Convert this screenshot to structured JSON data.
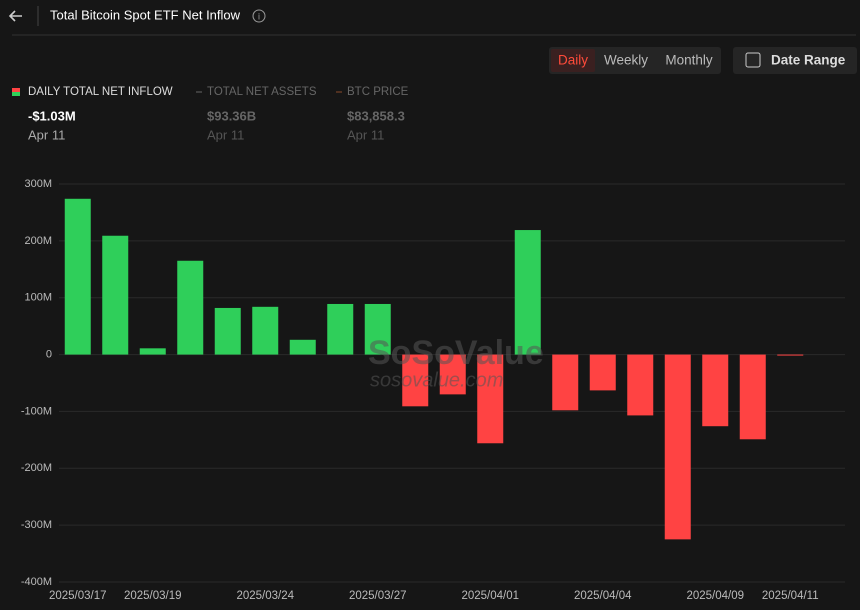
{
  "ui": {
    "title": "Total Bitcoin Spot ETF Net Inflow",
    "tabs": [
      "Daily",
      "Weekly",
      "Monthly"
    ],
    "date_range": "Date Range",
    "legend": [
      {
        "label": "DAILY TOTAL NET INFLOW",
        "value": "-$1.03M",
        "date": "Apr 11"
      },
      {
        "label": "TOTAL NET ASSETS",
        "value": "$93.36B",
        "date": "Apr 11"
      },
      {
        "label": "BTC PRICE",
        "value": "$83,858.3",
        "date": "Apr 11"
      }
    ],
    "watermark": "SoSoValue",
    "watermark_sub": "sosovalue.com"
  },
  "chart_data": {
    "type": "bar",
    "categories": [
      "2025/03/17",
      null,
      "2025/03/19",
      null,
      null,
      "2025/03/24",
      null,
      null,
      "2025/03/27",
      null,
      null,
      "2025/04/01",
      null,
      null,
      "2025/04/04",
      null,
      null,
      "2025/04/09",
      null,
      "2025/04/11"
    ],
    "values": [
      274,
      209,
      11,
      165,
      82,
      84,
      26,
      89,
      89,
      -91,
      -70,
      -156,
      219,
      -98,
      -63,
      -107,
      -325,
      -126,
      -149,
      -1.03
    ],
    "positive_color": "#2fcf5a",
    "negative_color": "#ff4343",
    "ylim": [
      -400,
      300
    ],
    "yticks": [
      {
        "value": 300,
        "label": "300M"
      },
      {
        "value": 200,
        "label": "200M"
      },
      {
        "value": 100,
        "label": "100M"
      },
      0,
      {
        "value": -100,
        "label": "-100M"
      },
      {
        "value": -200,
        "label": "-200M"
      },
      {
        "value": -300,
        "label": "-300M"
      },
      {
        "value": -400,
        "label": "-400M"
      }
    ],
    "grid": true
  }
}
